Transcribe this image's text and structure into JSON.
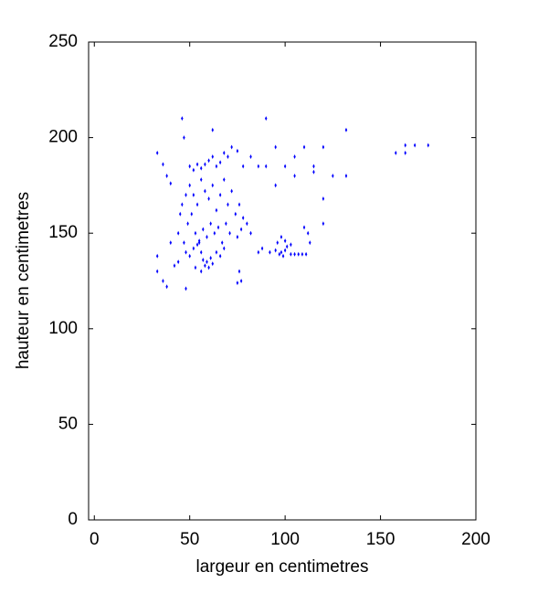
{
  "chart_data": {
    "type": "scatter",
    "x_label": "largeur en centimetres",
    "y_label": "hauteur en centimetres",
    "color": "#0000ff",
    "xlim": [
      -3,
      200
    ],
    "xticks": [
      0,
      50,
      100,
      150,
      200
    ],
    "ylim": [
      0,
      250
    ],
    "yticks": [
      0,
      50,
      100,
      150,
      200,
      250
    ],
    "grid": false,
    "x": [
      33,
      33,
      33,
      36,
      38,
      42,
      44,
      48,
      40,
      45,
      38,
      36,
      40,
      46,
      47,
      50,
      52,
      54,
      56,
      58,
      60,
      62,
      64,
      66,
      68,
      70,
      72,
      75,
      78,
      82,
      62,
      50,
      52,
      54,
      56,
      58,
      60,
      62,
      64,
      66,
      68,
      70,
      72,
      74,
      76,
      78,
      80,
      49,
      51,
      53,
      55,
      57,
      59,
      61,
      63,
      65,
      67,
      69,
      71,
      75,
      77,
      82,
      47,
      48,
      50,
      52,
      54,
      55,
      56,
      57,
      58,
      59,
      60,
      61,
      62,
      64,
      66,
      68,
      53,
      56,
      44,
      46,
      48,
      75,
      77,
      76,
      86,
      88,
      92,
      95,
      97,
      98,
      99,
      100,
      101,
      103,
      105,
      107,
      109,
      111,
      96,
      98,
      100,
      103,
      113,
      110,
      112,
      120,
      120,
      125,
      132,
      115,
      120,
      110,
      95,
      105,
      100,
      90,
      86,
      132,
      90,
      158,
      163,
      168,
      175,
      163,
      105,
      95,
      115
    ],
    "values": [
      192,
      138,
      130,
      125,
      122,
      133,
      135,
      121,
      145,
      160,
      180,
      186,
      176,
      210,
      200,
      185,
      183,
      186,
      184,
      186,
      188,
      190,
      185,
      187,
      192,
      190,
      195,
      193,
      185,
      190,
      204,
      175,
      170,
      165,
      178,
      172,
      168,
      175,
      162,
      170,
      178,
      165,
      172,
      160,
      165,
      158,
      155,
      155,
      160,
      150,
      145,
      152,
      148,
      155,
      150,
      153,
      145,
      155,
      150,
      148,
      152,
      150,
      145,
      140,
      138,
      142,
      144,
      146,
      140,
      136,
      133,
      135,
      132,
      137,
      134,
      140,
      138,
      142,
      132,
      130,
      150,
      165,
      170,
      124,
      125,
      130,
      140,
      142,
      140,
      141,
      139,
      140,
      138,
      141,
      143,
      139,
      139,
      139,
      139,
      139,
      145,
      148,
      146,
      144,
      145,
      153,
      150,
      155,
      168,
      180,
      180,
      185,
      195,
      195,
      195,
      190,
      185,
      185,
      185,
      204,
      210,
      192,
      196,
      196,
      196,
      192,
      180,
      175,
      182
    ]
  }
}
